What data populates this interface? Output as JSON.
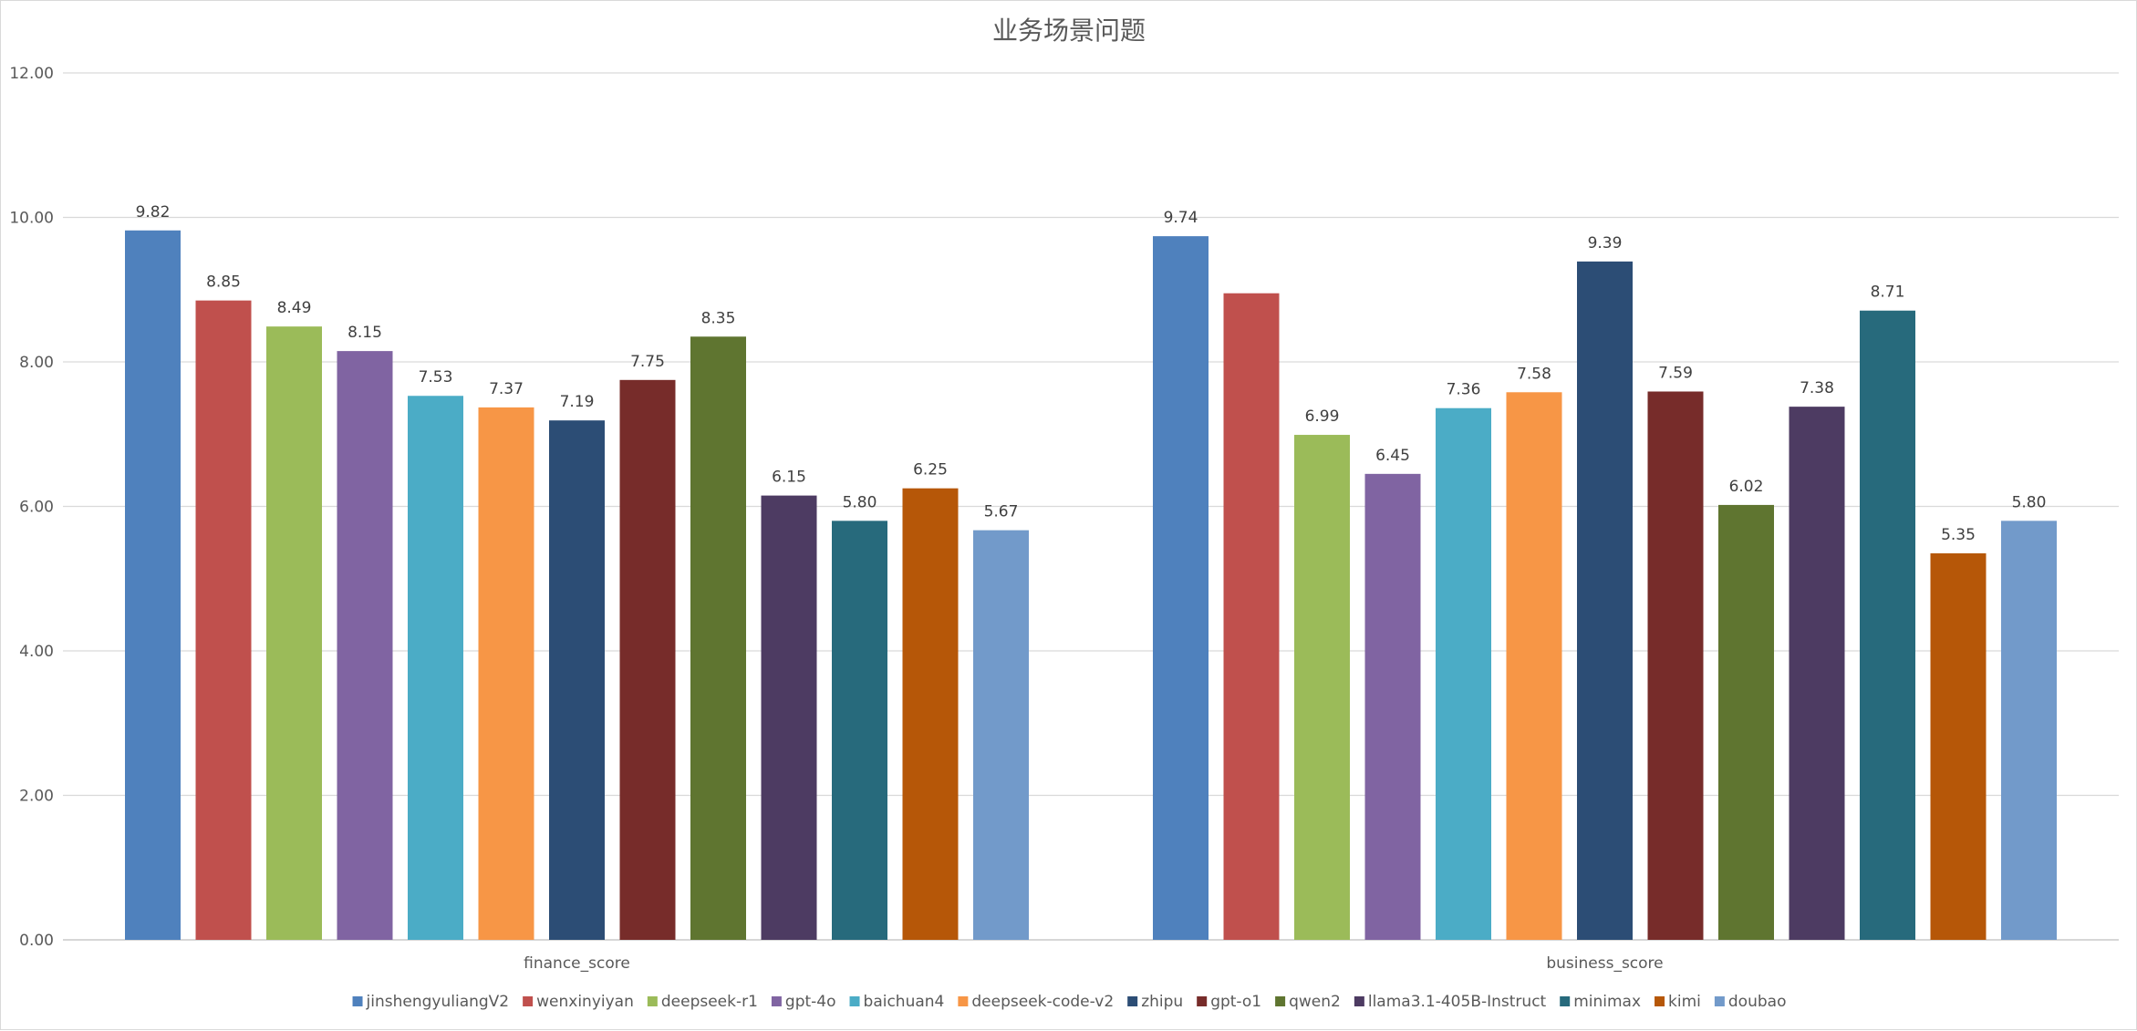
{
  "chart_data": {
    "type": "bar",
    "title": "业务场景问题",
    "xlabel": "",
    "ylabel": "",
    "ylim": [
      0,
      12
    ],
    "yticks": [
      "0.00",
      "2.00",
      "4.00",
      "6.00",
      "8.00",
      "10.00",
      "12.00"
    ],
    "grid": true,
    "legend_position": "bottom",
    "categories": [
      "finance_score",
      "business_score"
    ],
    "series": [
      {
        "name": "jinshengyuliangV2",
        "color": "#4F81BD",
        "values": [
          9.82,
          9.74
        ],
        "labels": [
          "9.82",
          "9.74"
        ]
      },
      {
        "name": "wenxinyiyan",
        "color": "#C0504D",
        "values": [
          8.85,
          8.95
        ],
        "labels": [
          "8.85",
          ""
        ]
      },
      {
        "name": "deepseek-r1",
        "color": "#9BBB59",
        "values": [
          8.49,
          6.99
        ],
        "labels": [
          "8.49",
          "6.99"
        ]
      },
      {
        "name": "gpt-4o",
        "color": "#8064A2",
        "values": [
          8.15,
          6.45
        ],
        "labels": [
          "8.15",
          "6.45"
        ]
      },
      {
        "name": "baichuan4",
        "color": "#4BACC6",
        "values": [
          7.53,
          7.36
        ],
        "labels": [
          "7.53",
          "7.36"
        ]
      },
      {
        "name": "deepseek-code-v2",
        "color": "#F79646",
        "values": [
          7.37,
          7.58
        ],
        "labels": [
          "7.37",
          "7.58"
        ]
      },
      {
        "name": "zhipu",
        "color": "#2C4D75",
        "values": [
          7.19,
          9.39
        ],
        "labels": [
          "7.19",
          "9.39"
        ]
      },
      {
        "name": "gpt-o1",
        "color": "#772C2A",
        "values": [
          7.75,
          7.59
        ],
        "labels": [
          "7.75",
          "7.59"
        ]
      },
      {
        "name": "qwen2",
        "color": "#5F7530",
        "values": [
          8.35,
          6.02
        ],
        "labels": [
          "8.35",
          "6.02"
        ]
      },
      {
        "name": "llama3.1-405B-Instruct",
        "color": "#4D3B62",
        "values": [
          6.15,
          7.38
        ],
        "labels": [
          "6.15",
          "7.38"
        ]
      },
      {
        "name": "minimax",
        "color": "#276A7C",
        "values": [
          5.8,
          8.71
        ],
        "labels": [
          "5.80",
          "8.71"
        ]
      },
      {
        "name": "kimi",
        "color": "#B65708",
        "values": [
          6.25,
          5.35
        ],
        "labels": [
          "6.25",
          "5.35"
        ]
      },
      {
        "name": "doubao",
        "color": "#729ACA",
        "values": [
          5.67,
          5.8
        ],
        "labels": [
          "5.67",
          "5.80"
        ]
      }
    ]
  }
}
